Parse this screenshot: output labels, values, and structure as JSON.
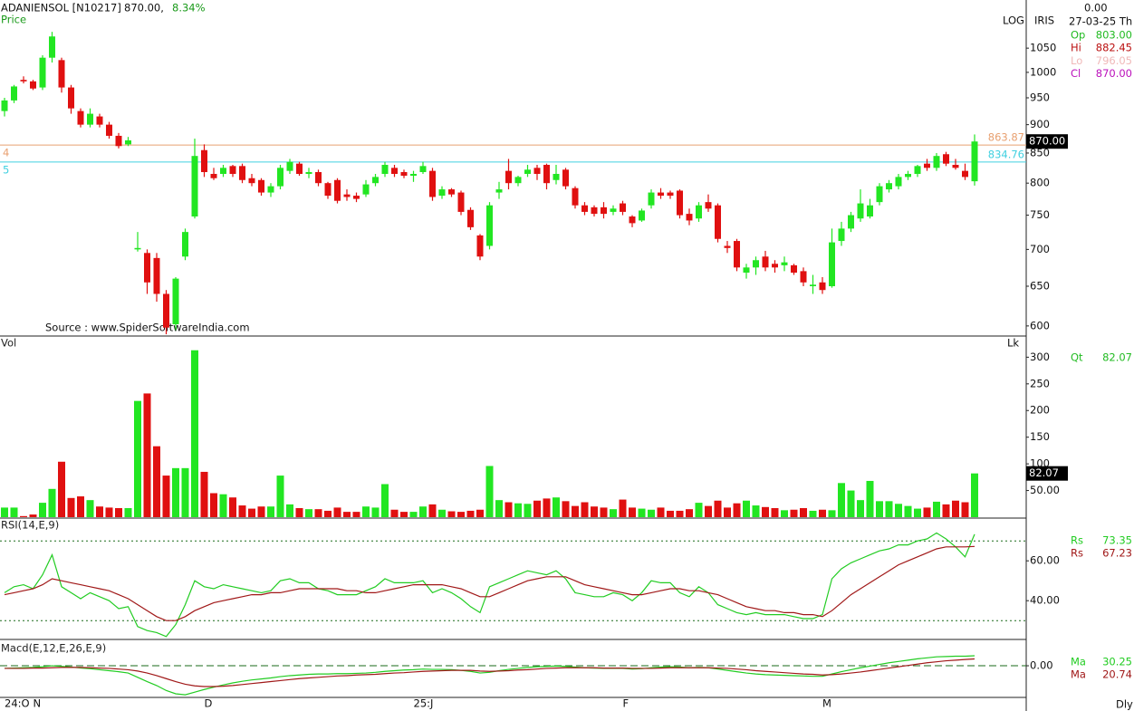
{
  "header": {
    "symbol": "ADANIENSOL [N10217]",
    "price": "870.00,",
    "change": "8.34%"
  },
  "info_panel": {
    "value": "0.00",
    "date": "27-03-25 Th",
    "rows": [
      {
        "label": "Op",
        "value": "803.00",
        "color": "#22bb22"
      },
      {
        "label": "Hi",
        "value": "882.45",
        "color": "#bb1111"
      },
      {
        "label": "Lo",
        "value": "796.05",
        "color": "#f0b8b8"
      },
      {
        "label": "Cl",
        "value": "870.00",
        "color": "#bb11bb"
      }
    ]
  },
  "period": "Dly",
  "chart_data": [
    {
      "type": "candlestick",
      "title": "Price",
      "scale_label": "LOG",
      "study": "IRIS",
      "log_scale": true,
      "source": "Source : www.SpiderSoftwareIndia.com",
      "up_color": "#22e622",
      "down_color": "#e01010",
      "categories": [
        "24:O",
        null,
        null,
        "N",
        null,
        null,
        null,
        null,
        null,
        null,
        null,
        null,
        null,
        null,
        null,
        null,
        null,
        null,
        null,
        null,
        null,
        "D",
        null,
        null,
        null,
        null,
        null,
        null,
        null,
        null,
        null,
        null,
        null,
        null,
        null,
        null,
        null,
        null,
        null,
        null,
        null,
        null,
        null,
        "25:J",
        null,
        null,
        null,
        null,
        null,
        null,
        null,
        null,
        null,
        null,
        null,
        null,
        null,
        null,
        null,
        null,
        null,
        null,
        null,
        null,
        null,
        "F",
        null,
        null,
        null,
        null,
        null,
        null,
        null,
        null,
        null,
        null,
        null,
        null,
        null,
        null,
        null,
        null,
        null,
        null,
        null,
        null,
        "M",
        null,
        null,
        null,
        null,
        null,
        null,
        null,
        null,
        null,
        null,
        null,
        null,
        null,
        null,
        null,
        null
      ],
      "open": [
        925,
        945,
        985,
        982,
        970,
        1030,
        1025,
        970,
        925,
        900,
        915,
        900,
        880,
        865,
        700,
        695,
        688,
        640,
        602,
        690,
        748,
        855,
        815,
        815,
        828,
        828,
        808,
        805,
        785,
        795,
        820,
        832,
        815,
        818,
        800,
        805,
        782,
        780,
        782,
        800,
        815,
        825,
        818,
        812,
        818,
        820,
        780,
        790,
        785,
        758,
        720,
        705,
        785,
        820,
        800,
        815,
        825,
        830,
        805,
        822,
        792,
        765,
        762,
        762,
        755,
        768,
        748,
        742,
        765,
        785,
        785,
        788,
        752,
        745,
        770,
        765,
        705,
        712,
        668,
        675,
        690,
        680,
        678,
        678,
        670,
        650,
        655,
        650,
        712,
        730,
        745,
        748,
        770,
        790,
        795,
        810,
        815,
        832,
        825,
        848,
        830,
        820,
        803
      ],
      "high": [
        950,
        975,
        992,
        985,
        1035,
        1085,
        1030,
        975,
        930,
        930,
        920,
        905,
        885,
        878,
        725,
        700,
        695,
        645,
        662,
        730,
        875,
        865,
        825,
        830,
        830,
        832,
        815,
        808,
        800,
        830,
        840,
        835,
        825,
        822,
        802,
        808,
        790,
        785,
        805,
        815,
        835,
        830,
        822,
        820,
        835,
        825,
        795,
        792,
        788,
        762,
        722,
        770,
        802,
        840,
        812,
        830,
        830,
        832,
        830,
        825,
        795,
        770,
        765,
        770,
        765,
        772,
        750,
        760,
        790,
        792,
        788,
        790,
        760,
        770,
        782,
        768,
        712,
        715,
        680,
        690,
        698,
        685,
        690,
        680,
        675,
        665,
        662,
        730,
        740,
        755,
        790,
        775,
        800,
        805,
        815,
        820,
        830,
        840,
        850,
        852,
        840,
        832,
        882.45
      ],
      "low": [
        915,
        940,
        978,
        965,
        965,
        1020,
        960,
        920,
        895,
        895,
        895,
        875,
        858,
        862,
        697,
        640,
        630,
        590,
        595,
        685,
        745,
        810,
        805,
        810,
        810,
        800,
        795,
        780,
        778,
        790,
        815,
        812,
        808,
        795,
        775,
        768,
        772,
        770,
        778,
        795,
        810,
        810,
        808,
        802,
        815,
        772,
        775,
        778,
        750,
        728,
        685,
        700,
        775,
        790,
        795,
        810,
        805,
        790,
        798,
        790,
        760,
        750,
        748,
        745,
        750,
        750,
        732,
        740,
        760,
        775,
        775,
        745,
        735,
        740,
        755,
        710,
        695,
        670,
        660,
        665,
        670,
        668,
        670,
        665,
        650,
        640,
        640,
        648,
        705,
        725,
        740,
        745,
        765,
        785,
        790,
        805,
        810,
        820,
        820,
        828,
        822,
        805,
        796.05
      ],
      "close": [
        945,
        972,
        982,
        968,
        1030,
        1075,
        970,
        930,
        900,
        920,
        900,
        880,
        862,
        872,
        702,
        655,
        640,
        598,
        660,
        725,
        845,
        818,
        808,
        825,
        815,
        805,
        800,
        785,
        795,
        825,
        835,
        815,
        818,
        800,
        780,
        772,
        778,
        775,
        798,
        810,
        830,
        815,
        812,
        815,
        828,
        778,
        790,
        782,
        755,
        732,
        690,
        765,
        790,
        800,
        810,
        822,
        815,
        800,
        815,
        795,
        765,
        755,
        752,
        752,
        760,
        755,
        738,
        757,
        785,
        780,
        780,
        750,
        742,
        765,
        760,
        715,
        702,
        675,
        675,
        685,
        675,
        675,
        682,
        668,
        655,
        652,
        645,
        710,
        730,
        750,
        768,
        765,
        795,
        800,
        810,
        815,
        828,
        825,
        845,
        832,
        825,
        810,
        870
      ],
      "last_label": "870.00",
      "hlines": [
        {
          "label": "4",
          "value": 863.87,
          "color": "#e8a070"
        },
        {
          "label": "5",
          "value": 834.76,
          "color": "#40d0e0"
        }
      ],
      "ylim": [
        589,
        1136
      ],
      "yticks": [
        600,
        650,
        700,
        750,
        800,
        850,
        900,
        950,
        1000,
        1050
      ]
    },
    {
      "type": "bar",
      "title": "Vol",
      "unit": "Lk",
      "up_color": "#22e622",
      "down_color": "#e01010",
      "values": [
        18,
        18,
        2,
        5,
        27,
        53,
        104,
        36,
        39,
        32,
        20,
        18,
        17,
        17,
        218,
        232,
        133,
        78,
        92,
        92,
        313,
        85,
        45,
        43,
        37,
        22,
        16,
        20,
        20,
        78,
        24,
        17,
        15,
        15,
        12,
        18,
        10,
        10,
        20,
        18,
        62,
        14,
        10,
        10,
        20,
        24,
        14,
        11,
        10,
        12,
        14,
        96,
        32,
        28,
        26,
        25,
        31,
        35,
        37,
        30,
        21,
        28,
        20,
        18,
        15,
        33,
        18,
        16,
        14,
        18,
        12,
        12,
        15,
        27,
        21,
        31,
        18,
        26,
        31,
        22,
        19,
        17,
        13,
        14,
        17,
        12,
        14,
        13,
        64,
        50,
        32,
        68,
        30,
        30,
        25,
        21,
        16,
        18,
        29,
        24,
        31,
        28,
        82.07
      ],
      "last_label": "82.07",
      "legend": {
        "label": "Qt",
        "value": "82.07",
        "color": "#22bb22"
      },
      "ylim": [
        0,
        338
      ],
      "yticks": [
        {
          "value": 50,
          "label": "50.00"
        },
        100,
        150,
        200,
        250,
        300
      ]
    },
    {
      "type": "line",
      "title": "RSI(14,E,9)",
      "series": [
        {
          "name": "Rs",
          "color": "#22cc22",
          "legend_value": "73.35",
          "values": [
            44,
            47,
            48,
            46,
            53,
            63,
            47,
            44,
            41,
            44,
            42,
            40,
            36,
            37,
            27,
            25,
            24,
            22,
            28,
            38,
            50,
            47,
            46,
            48,
            47,
            46,
            45,
            44,
            45,
            50,
            51,
            49,
            49,
            46,
            45,
            43,
            43,
            43,
            45,
            47,
            51,
            49,
            49,
            49,
            50,
            44,
            46,
            44,
            41,
            37,
            34,
            47,
            49,
            51,
            53,
            55,
            54,
            53,
            55,
            51,
            44,
            43,
            42,
            42,
            44,
            43,
            40,
            44,
            50,
            49,
            49,
            44,
            42,
            47,
            44,
            38,
            36,
            34,
            33,
            34,
            33,
            33,
            33,
            32,
            31,
            31,
            33,
            51,
            56,
            59,
            61,
            63,
            65,
            66,
            68,
            68,
            70,
            71,
            74,
            71,
            67,
            62,
            73.35
          ]
        },
        {
          "name": "Rs",
          "color": "#a01818",
          "legend_value": "67.23",
          "values": [
            43,
            44,
            45,
            46,
            48,
            51,
            50,
            49,
            48,
            47,
            46,
            45,
            43,
            41,
            38,
            35,
            32,
            30,
            30,
            32,
            35,
            37,
            39,
            40,
            41,
            42,
            43,
            43,
            44,
            44,
            45,
            46,
            46,
            46,
            46,
            46,
            45,
            45,
            44,
            44,
            45,
            46,
            47,
            48,
            48,
            48,
            48,
            47,
            46,
            44,
            42,
            42,
            44,
            46,
            48,
            50,
            51,
            52,
            52,
            52,
            50,
            48,
            47,
            46,
            45,
            44,
            43,
            43,
            44,
            45,
            46,
            46,
            45,
            45,
            44,
            43,
            41,
            39,
            37,
            36,
            35,
            35,
            34,
            34,
            33,
            33,
            32,
            35,
            39,
            43,
            46,
            49,
            52,
            55,
            58,
            60,
            62,
            64,
            66,
            67,
            67,
            67,
            67.23
          ]
        }
      ],
      "ref_lines": [
        70,
        30
      ],
      "ylim": [
        21,
        81
      ],
      "yticks": [
        {
          "value": 40,
          "label": "40.00"
        },
        {
          "value": 60,
          "label": "60.00"
        }
      ]
    },
    {
      "type": "line",
      "title": "Macd(E,12,E,26,E,9)",
      "grid": true,
      "series": [
        {
          "name": "Ma",
          "color": "#22cc22",
          "legend_value": "30.25",
          "values": [
            -8,
            -7,
            -6,
            -5,
            -3,
            0,
            -2,
            -4,
            -7,
            -9,
            -12,
            -15,
            -18,
            -22,
            -35,
            -48,
            -60,
            -75,
            -85,
            -88,
            -80,
            -72,
            -65,
            -58,
            -52,
            -47,
            -43,
            -40,
            -37,
            -33,
            -30,
            -28,
            -26,
            -25,
            -25,
            -24,
            -24,
            -23,
            -22,
            -20,
            -17,
            -15,
            -13,
            -12,
            -10,
            -11,
            -11,
            -12,
            -14,
            -17,
            -22,
            -20,
            -15,
            -11,
            -8,
            -5,
            -3,
            -2,
            -1,
            -2,
            -4,
            -6,
            -7,
            -8,
            -8,
            -8,
            -10,
            -9,
            -6,
            -4,
            -3,
            -4,
            -6,
            -5,
            -6,
            -10,
            -14,
            -18,
            -22,
            -25,
            -27,
            -28,
            -29,
            -30,
            -31,
            -32,
            -32,
            -25,
            -18,
            -12,
            -6,
            -1,
            4,
            9,
            13,
            17,
            21,
            24,
            27,
            28,
            29,
            29,
            30.25
          ]
        },
        {
          "name": "Ma",
          "color": "#a01818",
          "legend_value": "20.74",
          "values": [
            -8,
            -8,
            -8,
            -7,
            -7,
            -6,
            -5,
            -5,
            -5,
            -6,
            -7,
            -8,
            -10,
            -12,
            -16,
            -22,
            -30,
            -39,
            -48,
            -56,
            -61,
            -63,
            -63,
            -62,
            -60,
            -57,
            -54,
            -51,
            -48,
            -45,
            -42,
            -39,
            -37,
            -35,
            -33,
            -31,
            -30,
            -28,
            -27,
            -26,
            -24,
            -22,
            -21,
            -19,
            -17,
            -16,
            -15,
            -14,
            -14,
            -14,
            -16,
            -17,
            -16,
            -15,
            -13,
            -12,
            -10,
            -8,
            -7,
            -6,
            -6,
            -6,
            -6,
            -7,
            -7,
            -7,
            -8,
            -8,
            -8,
            -7,
            -6,
            -6,
            -6,
            -6,
            -6,
            -7,
            -8,
            -10,
            -12,
            -15,
            -17,
            -19,
            -21,
            -23,
            -25,
            -26,
            -28,
            -27,
            -25,
            -22,
            -19,
            -15,
            -11,
            -7,
            -3,
            1,
            5,
            9,
            12,
            15,
            17,
            19,
            20.74
          ]
        }
      ],
      "ylim": [
        -96,
        77
      ],
      "yticks": [
        {
          "value": 0,
          "label": "0.00"
        }
      ]
    }
  ]
}
